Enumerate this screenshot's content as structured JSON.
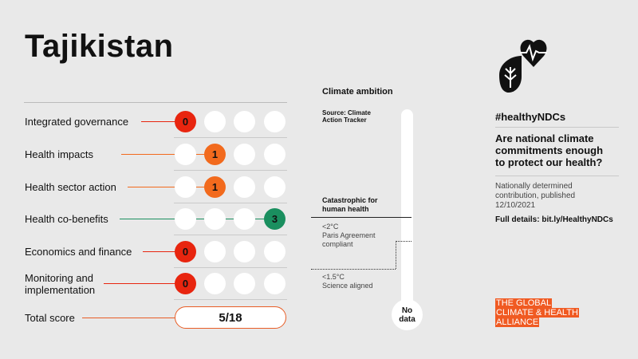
{
  "country": "Tajikistan",
  "indicators": [
    {
      "label_lines": [
        "Integrated governance"
      ],
      "score": 0,
      "color": "#e8250f",
      "line_color": "#e8250f"
    },
    {
      "label_lines": [
        "Health impacts"
      ],
      "score": 1,
      "color": "#f26a1d",
      "line_color": "#f26a1d"
    },
    {
      "label_lines": [
        "Health sector action"
      ],
      "score": 1,
      "color": "#f26a1d",
      "line_color": "#f26a1d"
    },
    {
      "label_lines": [
        "Health co-benefits"
      ],
      "score": 3,
      "color": "#1a8f5f",
      "line_color": "#1a8f5f"
    },
    {
      "label_lines": [
        "Economics and finance"
      ],
      "score": 0,
      "color": "#e8250f",
      "line_color": "#e8250f"
    },
    {
      "label_lines": [
        "Monitoring and",
        "implementation"
      ],
      "score": 0,
      "color": "#e8250f",
      "line_color": "#e8250f"
    }
  ],
  "total": {
    "label": "Total score",
    "value": "5/18",
    "line_color": "#e85d26"
  },
  "climate": {
    "title": "Climate ambition",
    "source_lines": [
      "Source: Climate",
      "Action Tracker"
    ],
    "catastrophic_lines": [
      "Catastrophic for",
      "human health"
    ],
    "paris_lines": [
      "<2°C",
      "Paris Agreement",
      "compliant"
    ],
    "science_lines": [
      "<1.5°C",
      "Science aligned"
    ],
    "bulb_lines": [
      "No",
      "data"
    ]
  },
  "right": {
    "hashtag": "#healthyNDCs",
    "question_lines": [
      "Are national climate",
      "commitments enough",
      "to protect our health?"
    ],
    "ndc_lines": [
      "Nationally determined",
      "contribution, published",
      "12/10/2021"
    ],
    "details": "Full details: bit.ly/HealthyNDCs",
    "logo_lines": [
      "THE GLOBAL",
      "CLIMATE & HEALTH",
      "ALLIANCE"
    ]
  },
  "icons": [
    "heart-pulse-icon",
    "leaf-drop-icon"
  ],
  "colors": {
    "background": "#e9e9e9",
    "accent": "#e85d26"
  }
}
